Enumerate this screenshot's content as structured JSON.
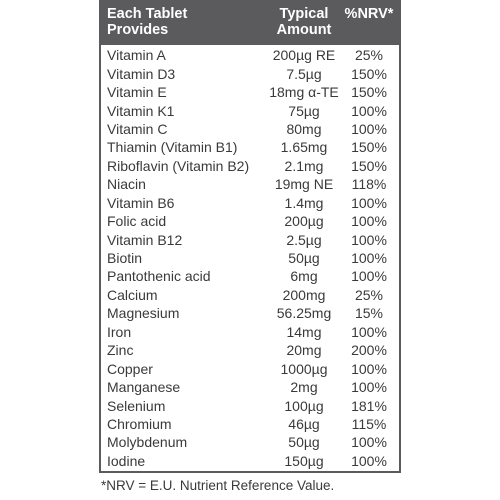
{
  "header": {
    "name_line1": "Each Tablet",
    "name_line2": "Provides",
    "amount_line1": "Typical",
    "amount_line2": "Amount",
    "nrv": "%NRV*"
  },
  "rows": [
    {
      "name": "Vitamin A",
      "amount": "200µg RE",
      "nrv": "25%"
    },
    {
      "name": "Vitamin D3",
      "amount": "7.5µg",
      "nrv": "150%"
    },
    {
      "name": "Vitamin E",
      "amount": "18mg α-TE",
      "nrv": "150%"
    },
    {
      "name": "Vitamin K1",
      "amount": "75µg",
      "nrv": "100%"
    },
    {
      "name": "Vitamin C",
      "amount": "80mg",
      "nrv": "100%"
    },
    {
      "name": "Thiamin (Vitamin B1)",
      "amount": "1.65mg",
      "nrv": "150%"
    },
    {
      "name": "Riboflavin (Vitamin B2)",
      "amount": "2.1mg",
      "nrv": "150%"
    },
    {
      "name": "Niacin",
      "amount": "19mg NE",
      "nrv": "118%"
    },
    {
      "name": "Vitamin B6",
      "amount": "1.4mg",
      "nrv": "100%"
    },
    {
      "name": "Folic acid",
      "amount": "200µg",
      "nrv": "100%"
    },
    {
      "name": "Vitamin B12",
      "amount": "2.5µg",
      "nrv": "100%"
    },
    {
      "name": "Biotin",
      "amount": "50µg",
      "nrv": "100%"
    },
    {
      "name": "Pantothenic acid",
      "amount": "6mg",
      "nrv": "100%"
    },
    {
      "name": "Calcium",
      "amount": "200mg",
      "nrv": "25%"
    },
    {
      "name": "Magnesium",
      "amount": "56.25mg",
      "nrv": "15%"
    },
    {
      "name": "Iron",
      "amount": "14mg",
      "nrv": "100%"
    },
    {
      "name": "Zinc",
      "amount": "20mg",
      "nrv": "200%"
    },
    {
      "name": "Copper",
      "amount": "1000µg",
      "nrv": "100%"
    },
    {
      "name": "Manganese",
      "amount": "2mg",
      "nrv": "100%"
    },
    {
      "name": "Selenium",
      "amount": "100µg",
      "nrv": "181%"
    },
    {
      "name": "Chromium",
      "amount": "46µg",
      "nrv": "115%"
    },
    {
      "name": "Molybdenum",
      "amount": "50µg",
      "nrv": "100%"
    },
    {
      "name": "Iodine",
      "amount": "150µg",
      "nrv": "100%"
    }
  ],
  "footnote": "*NRV = E.U. Nutrient Reference Value.",
  "colors": {
    "header_bg": "#5b5b5d",
    "header_text": "#ffffff",
    "body_text": "#3a3a3a",
    "border": "#5b5b5d"
  }
}
